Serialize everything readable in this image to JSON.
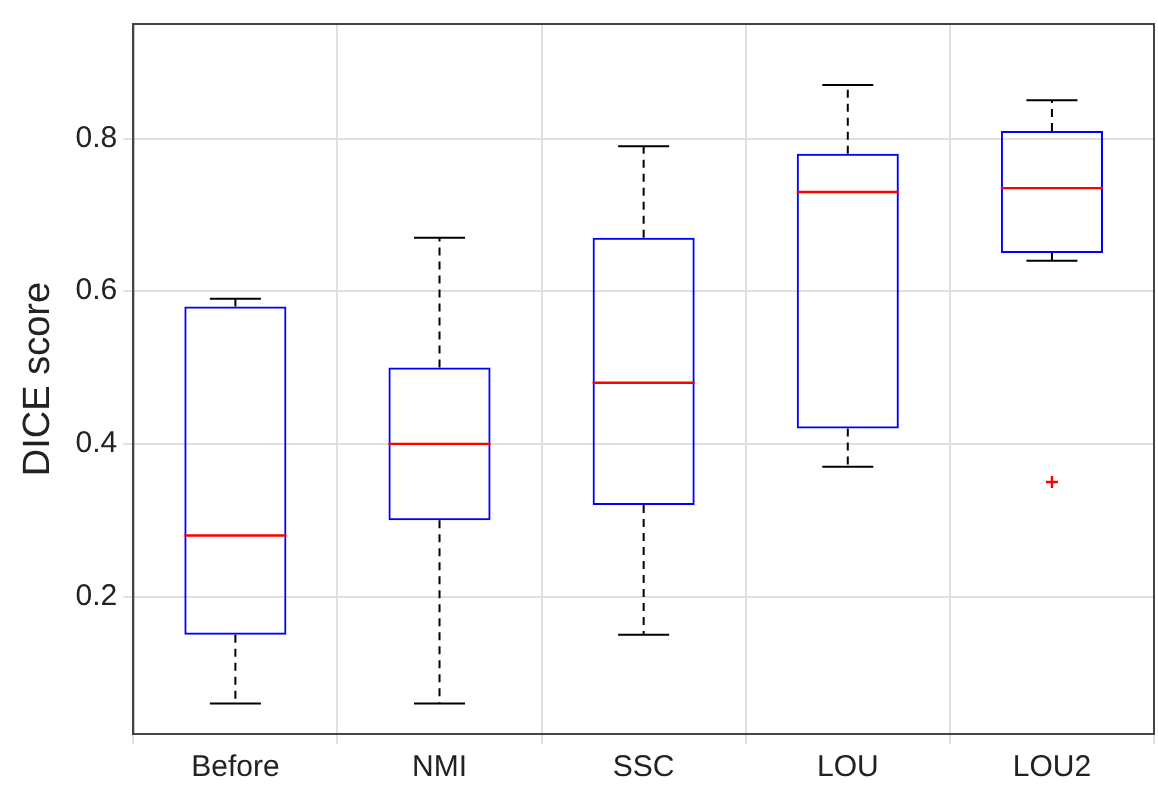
{
  "chart_data": {
    "type": "box",
    "ylabel": "DICE score",
    "categories": [
      "Before",
      "NMI",
      "SSC",
      "LOU",
      "LOU2"
    ],
    "boxes": [
      {
        "low": 0.06,
        "q1": 0.15,
        "median": 0.28,
        "q3": 0.58,
        "high": 0.59
      },
      {
        "low": 0.06,
        "q1": 0.3,
        "median": 0.4,
        "q3": 0.5,
        "high": 0.67
      },
      {
        "low": 0.15,
        "q1": 0.32,
        "median": 0.48,
        "q3": 0.67,
        "high": 0.79
      },
      {
        "low": 0.37,
        "q1": 0.42,
        "median": 0.73,
        "q3": 0.78,
        "high": 0.87
      },
      {
        "low": 0.64,
        "q1": 0.65,
        "median": 0.735,
        "q3": 0.81,
        "high": 0.85,
        "outliers": [
          0.35
        ]
      }
    ],
    "color": "#0000ff",
    "ylim": [
      0.02,
      0.95
    ],
    "yticks": [
      {
        "value": 0.2,
        "label": "0.2"
      },
      {
        "value": 0.4,
        "label": "0.4"
      },
      {
        "value": 0.6,
        "label": "0.6"
      },
      {
        "value": 0.8,
        "label": "0.8"
      }
    ],
    "grid": true
  }
}
